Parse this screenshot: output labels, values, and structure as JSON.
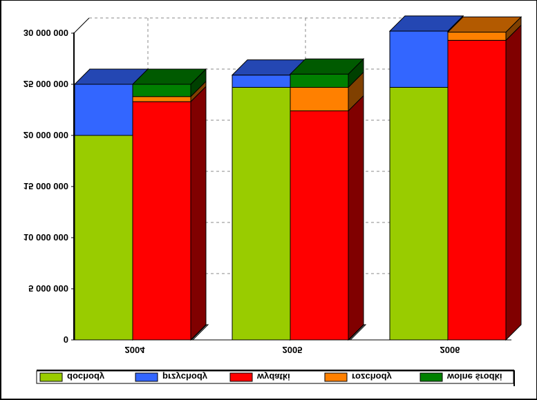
{
  "chart_data": {
    "type": "bar",
    "stacked": true,
    "three_d": true,
    "orientation": "vertically-flipped",
    "categories": [
      "2004",
      "2005",
      "2006"
    ],
    "ylim": [
      0,
      30000000
    ],
    "y_ticks": [
      0,
      5000000,
      10000000,
      15000000,
      20000000,
      25000000,
      30000000
    ],
    "y_tick_labels": [
      "0",
      "5 000 000",
      "10 000 000",
      "15 000 000",
      "20 000 000",
      "25 000 000",
      "30 000 000"
    ],
    "grid": true,
    "legend_position": "top",
    "stacks": [
      {
        "name": "income",
        "series": [
          "dochody",
          "przychody"
        ]
      },
      {
        "name": "expense",
        "series": [
          "wydatki",
          "rozchody",
          "wolne środki"
        ]
      }
    ],
    "series": [
      {
        "name": "dochody",
        "stack": "income",
        "color": "#99cc00",
        "values": [
          20000000,
          24700000,
          24700000
        ]
      },
      {
        "name": "przychody",
        "stack": "income",
        "color": "#3366ff",
        "values": [
          5000000,
          1200000,
          5500000
        ]
      },
      {
        "name": "wydatki",
        "stack": "expense",
        "color": "#ff0000",
        "values": [
          23300000,
          22400000,
          29300000
        ]
      },
      {
        "name": "rozchody",
        "stack": "expense",
        "color": "#ff8000",
        "values": [
          500000,
          2300000,
          800000
        ]
      },
      {
        "name": "wolne środki",
        "stack": "expense",
        "color": "#008000",
        "values": [
          1200000,
          1300000,
          0
        ]
      }
    ]
  }
}
